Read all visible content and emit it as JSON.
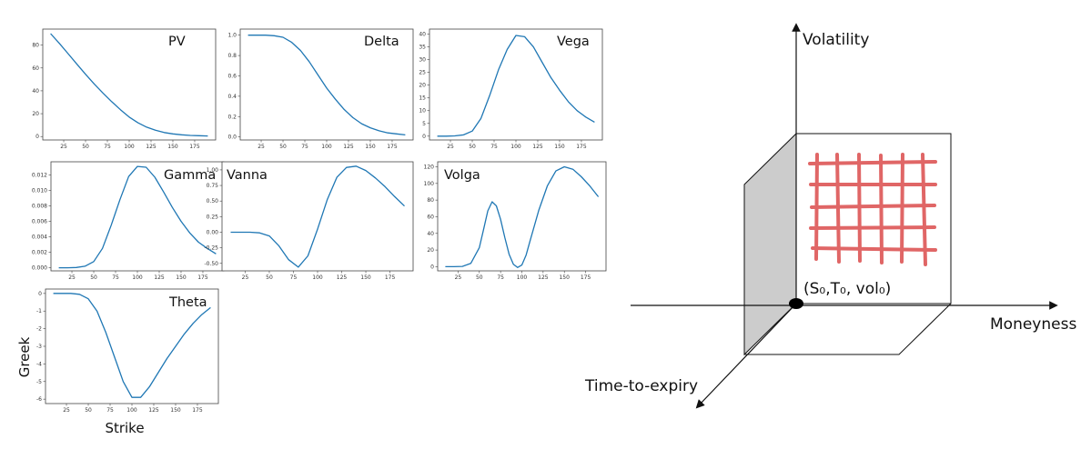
{
  "figure": {
    "ylabel": "Greek",
    "xlabel": "Strike",
    "line_color": "#1f77b4"
  },
  "chart_data": [
    {
      "type": "line",
      "title": "PV",
      "xticks": [
        25,
        50,
        75,
        100,
        125,
        150,
        175
      ],
      "yticks": [
        "0",
        "20",
        "40",
        "60",
        "80"
      ],
      "xlim": [
        1,
        199
      ],
      "ylim": [
        -3,
        94
      ],
      "series": [
        {
          "x": [
            10,
            20,
            30,
            40,
            50,
            60,
            70,
            80,
            90,
            100,
            110,
            120,
            130,
            140,
            150,
            160,
            170,
            180,
            190
          ],
          "values": [
            90,
            81.5,
            72.5,
            63.5,
            54.5,
            46,
            38,
            30.5,
            23.5,
            17,
            12,
            8.2,
            5.5,
            3.5,
            2.3,
            1.5,
            1.0,
            0.7,
            0.5
          ]
        }
      ]
    },
    {
      "type": "line",
      "title": "Delta",
      "xticks": [
        25,
        50,
        75,
        100,
        125,
        150,
        175
      ],
      "yticks": [
        "0.0",
        "0.2",
        "0.4",
        "0.6",
        "0.8",
        "1.0"
      ],
      "xlim": [
        1,
        199
      ],
      "ylim": [
        -0.03,
        1.06
      ],
      "series": [
        {
          "x": [
            10,
            20,
            30,
            40,
            50,
            60,
            70,
            80,
            90,
            100,
            110,
            120,
            130,
            140,
            150,
            160,
            170,
            180,
            190
          ],
          "values": [
            1.0,
            1.0,
            1.0,
            0.995,
            0.98,
            0.93,
            0.85,
            0.74,
            0.61,
            0.48,
            0.37,
            0.27,
            0.19,
            0.13,
            0.09,
            0.06,
            0.04,
            0.03,
            0.02
          ]
        }
      ]
    },
    {
      "type": "line",
      "title": "Vega",
      "xticks": [
        25,
        50,
        75,
        100,
        125,
        150,
        175
      ],
      "yticks": [
        "0",
        "5",
        "10",
        "15",
        "20",
        "25",
        "30",
        "35",
        "40"
      ],
      "xlim": [
        1,
        199
      ],
      "ylim": [
        -1.5,
        42
      ],
      "series": [
        {
          "x": [
            10,
            20,
            30,
            40,
            50,
            60,
            70,
            80,
            90,
            100,
            110,
            120,
            130,
            140,
            150,
            160,
            170,
            180,
            190
          ],
          "values": [
            0,
            0,
            0.1,
            0.5,
            2,
            7,
            16,
            26,
            34,
            39.5,
            39,
            35,
            29,
            23,
            18,
            13.5,
            10,
            7.5,
            5.5
          ]
        }
      ]
    },
    {
      "type": "line",
      "title": "Gamma",
      "xticks": [
        25,
        50,
        75,
        100,
        125,
        150,
        175
      ],
      "yticks": [
        "0.000",
        "0.002",
        "0.004",
        "0.006",
        "0.008",
        "0.010",
        "0.012"
      ],
      "xlim": [
        1,
        199
      ],
      "ylim": [
        -0.0004,
        0.0137
      ],
      "series": [
        {
          "x": [
            10,
            20,
            30,
            40,
            50,
            60,
            70,
            80,
            90,
            100,
            110,
            120,
            130,
            140,
            150,
            160,
            170,
            180,
            190
          ],
          "values": [
            0,
            0,
            3e-05,
            0.0002,
            0.0008,
            0.0025,
            0.0055,
            0.0088,
            0.0118,
            0.0131,
            0.013,
            0.0117,
            0.0098,
            0.0078,
            0.006,
            0.0045,
            0.0033,
            0.0025,
            0.0018
          ]
        }
      ]
    },
    {
      "type": "line",
      "title": "Vanna",
      "xticks": [
        25,
        50,
        75,
        100,
        125,
        150,
        175
      ],
      "yticks": [
        "-0.50",
        "-0.25",
        "0.00",
        "0.25",
        "0.50",
        "0.75",
        "1.00"
      ],
      "xlim": [
        1,
        199
      ],
      "ylim": [
        -0.62,
        1.13
      ],
      "series": [
        {
          "x": [
            10,
            20,
            30,
            40,
            50,
            60,
            70,
            80,
            90,
            100,
            110,
            120,
            130,
            140,
            150,
            160,
            170,
            180,
            190
          ],
          "values": [
            0,
            0,
            0,
            -0.01,
            -0.06,
            -0.22,
            -0.44,
            -0.56,
            -0.38,
            0.05,
            0.52,
            0.88,
            1.04,
            1.06,
            0.99,
            0.87,
            0.73,
            0.57,
            0.42
          ]
        }
      ]
    },
    {
      "type": "line",
      "title": "Volga",
      "xticks": [
        25,
        50,
        75,
        100,
        125,
        150,
        175
      ],
      "yticks": [
        "0",
        "20",
        "40",
        "60",
        "80",
        "100",
        "120"
      ],
      "xlim": [
        1,
        199
      ],
      "ylim": [
        -5,
        126
      ],
      "series": [
        {
          "x": [
            10,
            20,
            30,
            40,
            50,
            55,
            60,
            65,
            70,
            75,
            80,
            85,
            90,
            95,
            100,
            105,
            110,
            120,
            130,
            140,
            150,
            160,
            170,
            180,
            190
          ],
          "values": [
            0,
            0,
            0.3,
            4,
            23,
            45,
            67,
            78,
            73,
            57,
            35,
            15,
            3,
            -1,
            2,
            14,
            32,
            68,
            97,
            115,
            120,
            117,
            108,
            97,
            84
          ]
        }
      ]
    },
    {
      "type": "line",
      "title": "Theta",
      "xticks": [
        25,
        50,
        75,
        100,
        125,
        150,
        175
      ],
      "yticks": [
        "-6",
        "-5",
        "-4",
        "-3",
        "-2",
        "-1",
        "0"
      ],
      "xlim": [
        1,
        199
      ],
      "ylim": [
        -6.25,
        0.25
      ],
      "series": [
        {
          "x": [
            10,
            20,
            30,
            40,
            50,
            60,
            70,
            80,
            90,
            100,
            110,
            120,
            130,
            140,
            150,
            160,
            170,
            180,
            190
          ],
          "values": [
            0,
            0,
            0,
            -0.05,
            -0.3,
            -1.0,
            -2.2,
            -3.6,
            -5.0,
            -5.9,
            -5.9,
            -5.3,
            -4.5,
            -3.7,
            -3.0,
            -2.3,
            -1.7,
            -1.2,
            -0.8
          ]
        }
      ]
    }
  ],
  "diagram": {
    "axis_volatility": "Volatility",
    "axis_moneyness": "Moneyness",
    "axis_time": "Time-to-expiry",
    "origin_label": "(S₀,T₀, vol₀)",
    "grid_color": "#e06666",
    "side_color": "#cccccc"
  }
}
